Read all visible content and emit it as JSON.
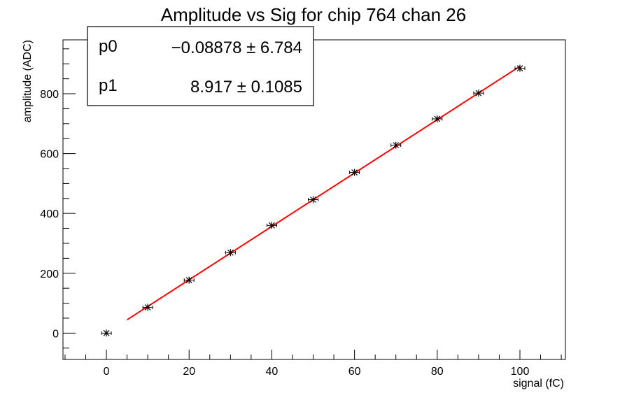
{
  "chart_data": {
    "type": "scatter",
    "title": "Amplitude vs Sig for chip 764 chan 26",
    "xlabel": "signal (fC)",
    "ylabel": "amplitude (ADC)",
    "xlim": [
      -10.5,
      111
    ],
    "ylim": [
      -88,
      980
    ],
    "x_ticks": [
      0,
      20,
      40,
      60,
      80,
      100
    ],
    "y_ticks": [
      0,
      200,
      400,
      600,
      800
    ],
    "grid": false,
    "series": [
      {
        "marker": "star-with-error-bars",
        "color": "#000000",
        "points": [
          {
            "x": 0,
            "y": 0
          },
          {
            "x": 10,
            "y": 86
          },
          {
            "x": 20,
            "y": 177
          },
          {
            "x": 30,
            "y": 269
          },
          {
            "x": 40,
            "y": 360
          },
          {
            "x": 50,
            "y": 446
          },
          {
            "x": 60,
            "y": 537
          },
          {
            "x": 70,
            "y": 628
          },
          {
            "x": 80,
            "y": 716
          },
          {
            "x": 90,
            "y": 802
          },
          {
            "x": 100,
            "y": 885
          }
        ]
      }
    ],
    "fit": {
      "color": "#ff0000",
      "p0": -0.08878,
      "p1": 8.917,
      "x_range": [
        5,
        100
      ]
    },
    "stats_box": {
      "placement": "top-left",
      "rows": [
        {
          "label": "p0",
          "value": "−0.08878 ± 6.784"
        },
        {
          "label": "p1",
          "value": "8.917 ± 0.1085"
        }
      ]
    }
  }
}
